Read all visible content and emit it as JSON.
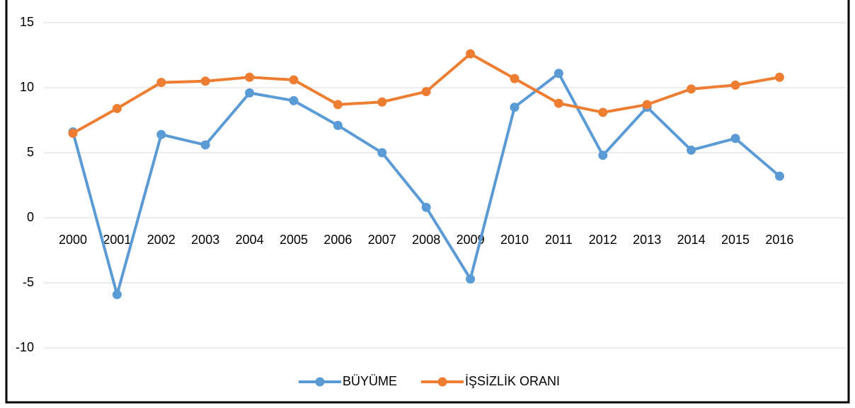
{
  "chart_data": {
    "type": "line",
    "categories": [
      "2000",
      "2001",
      "2002",
      "2003",
      "2004",
      "2005",
      "2006",
      "2007",
      "2008",
      "2009",
      "2010",
      "2011",
      "2012",
      "2013",
      "2014",
      "2015",
      "2016"
    ],
    "series": [
      {
        "name": "BÜYÜME",
        "color": "#5b9bd5",
        "values": [
          6.6,
          -5.9,
          6.4,
          5.6,
          9.6,
          9.0,
          7.1,
          5.0,
          0.8,
          -4.7,
          8.5,
          11.1,
          4.8,
          8.5,
          5.2,
          6.1,
          3.2
        ]
      },
      {
        "name": "İŞSİZLİK ORANI",
        "color": "#ed7d31",
        "values": [
          6.5,
          8.4,
          10.4,
          10.5,
          10.8,
          10.6,
          8.7,
          8.9,
          9.7,
          12.6,
          10.7,
          8.8,
          8.1,
          8.7,
          9.9,
          10.2,
          10.8
        ]
      }
    ],
    "ylim": [
      -10,
      15
    ],
    "yticks": [
      -10,
      -5,
      0,
      5,
      10,
      15
    ],
    "grid": true,
    "legend": "bottom"
  }
}
